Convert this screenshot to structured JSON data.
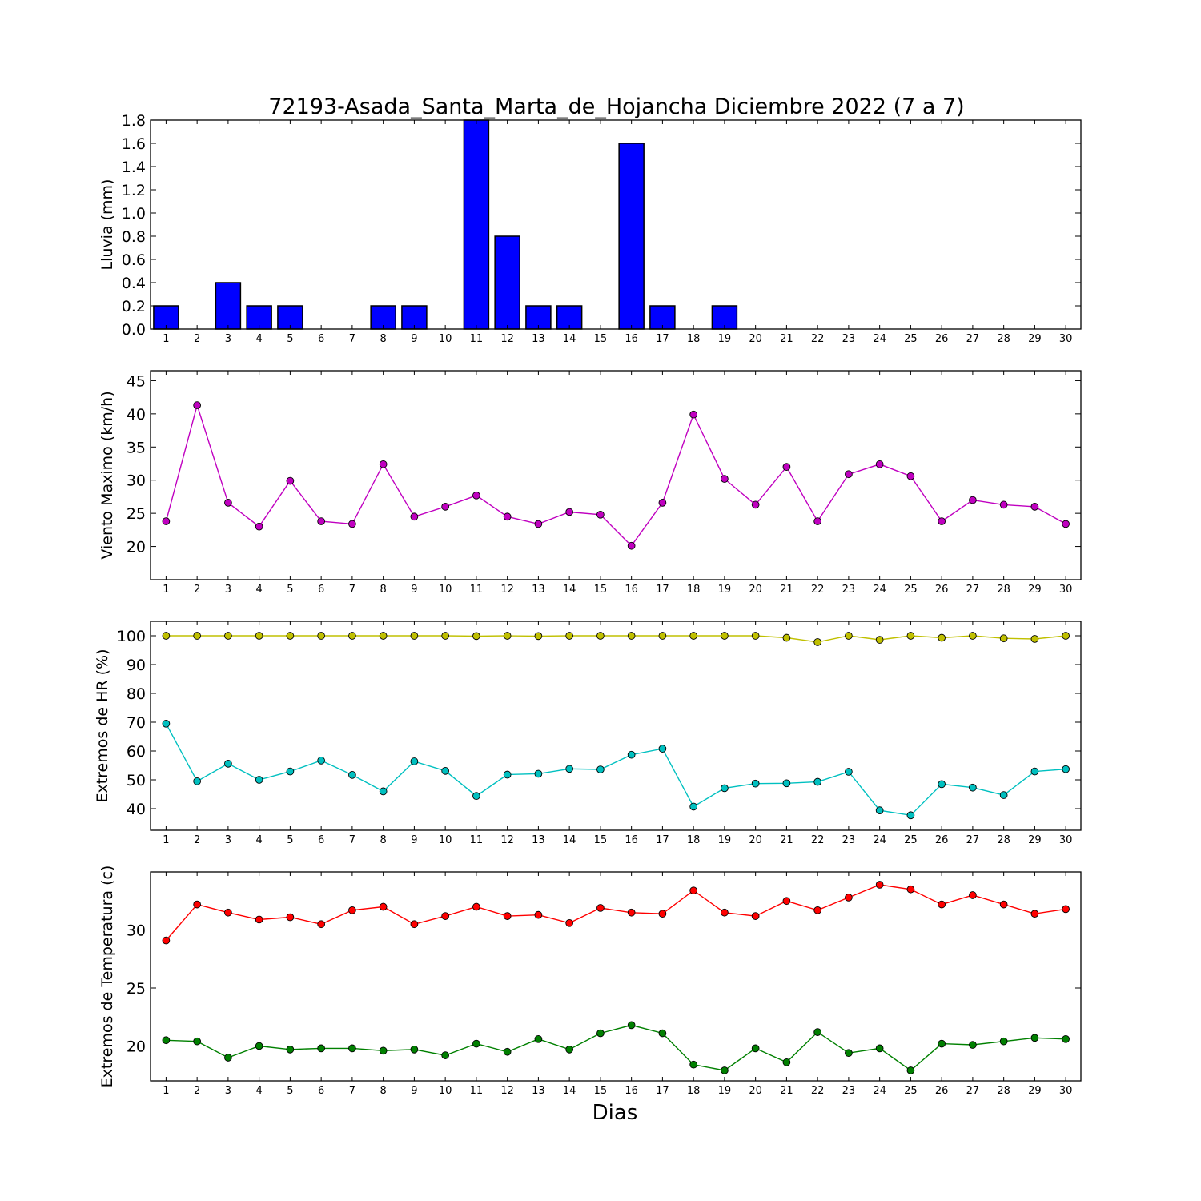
{
  "figure": {
    "title": "72193-Asada_Santa_Marta_de_Hojancha Diciembre 2022  (7 a 7)",
    "xlabel": "Dias"
  },
  "chart_data": [
    {
      "type": "bar",
      "ylabel": "Lluvia (mm)",
      "categories": [
        "1",
        "2",
        "3",
        "4",
        "5",
        "6",
        "7",
        "8",
        "9",
        "10",
        "11",
        "12",
        "13",
        "14",
        "15",
        "16",
        "17",
        "18",
        "19",
        "20",
        "21",
        "22",
        "23",
        "24",
        "25",
        "26",
        "27",
        "28",
        "29",
        "30"
      ],
      "values": [
        0.2,
        0,
        0.4,
        0.2,
        0.2,
        0,
        0,
        0.2,
        0.2,
        0,
        1.8,
        0.8,
        0.2,
        0.2,
        0,
        1.6,
        0.2,
        0,
        0.2,
        0,
        0,
        0,
        0,
        0,
        0,
        0,
        0,
        0,
        0,
        0
      ],
      "ylim": [
        0,
        1.8
      ],
      "yticks": [
        "0.0",
        "0.2",
        "0.4",
        "0.6",
        "0.8",
        "1.0",
        "1.2",
        "1.4",
        "1.6",
        "1.8"
      ],
      "color": "#0000ff"
    },
    {
      "type": "line",
      "ylabel": "Viento Maximo (km/h)",
      "x": [
        1,
        2,
        3,
        4,
        5,
        6,
        7,
        8,
        9,
        10,
        11,
        12,
        13,
        14,
        15,
        16,
        17,
        18,
        19,
        20,
        21,
        22,
        23,
        24,
        25,
        26,
        27,
        28,
        29,
        30
      ],
      "series": [
        {
          "values": [
            23.8,
            41.3,
            26.6,
            23.0,
            29.9,
            23.8,
            23.4,
            32.4,
            24.5,
            26.0,
            27.7,
            24.5,
            23.4,
            25.2,
            24.8,
            20.1,
            26.6,
            39.9,
            30.2,
            26.3,
            32.0,
            23.8,
            30.9,
            32.4,
            30.6,
            23.8,
            27.0,
            26.3,
            26.0,
            23.4
          ],
          "color": "#c000c0"
        }
      ],
      "ylim": [
        15,
        46.5
      ],
      "yticks": [
        "20",
        "25",
        "30",
        "35",
        "40",
        "45"
      ]
    },
    {
      "type": "line",
      "ylabel": "Extremos de HR (%)",
      "x": [
        1,
        2,
        3,
        4,
        5,
        6,
        7,
        8,
        9,
        10,
        11,
        12,
        13,
        14,
        15,
        16,
        17,
        18,
        19,
        20,
        21,
        22,
        23,
        24,
        25,
        26,
        27,
        28,
        29,
        30
      ],
      "series": [
        {
          "values": [
            100,
            100,
            100,
            100,
            100,
            100,
            100,
            100,
            100,
            100,
            99.9,
            100,
            99.9,
            100,
            100,
            100,
            100,
            100,
            100,
            100,
            99.3,
            97.8,
            100,
            98.6,
            100,
            99.3,
            100,
            99.1,
            98.9,
            100
          ],
          "color": "#c0c000"
        },
        {
          "values": [
            69.5,
            49.5,
            55.6,
            50.0,
            52.9,
            56.7,
            51.7,
            46.0,
            56.4,
            53.1,
            44.4,
            51.8,
            52.1,
            53.8,
            53.6,
            58.7,
            60.8,
            40.7,
            47.1,
            48.7,
            48.8,
            49.3,
            52.8,
            39.4,
            37.7,
            48.5,
            47.3,
            44.7,
            52.9,
            53.7
          ],
          "color": "#00c0c0"
        }
      ],
      "ylim": [
        32.5,
        105
      ],
      "yticks": [
        "40",
        "50",
        "60",
        "70",
        "80",
        "90",
        "100"
      ]
    },
    {
      "type": "line",
      "ylabel": "Extremos de Temperatura (c)",
      "x": [
        1,
        2,
        3,
        4,
        5,
        6,
        7,
        8,
        9,
        10,
        11,
        12,
        13,
        14,
        15,
        16,
        17,
        18,
        19,
        20,
        21,
        22,
        23,
        24,
        25,
        26,
        27,
        28,
        29,
        30
      ],
      "series": [
        {
          "values": [
            29.1,
            32.2,
            31.5,
            30.9,
            31.1,
            30.5,
            31.7,
            32.0,
            30.5,
            31.2,
            32.0,
            31.2,
            31.3,
            30.6,
            31.9,
            31.5,
            31.4,
            33.4,
            31.5,
            31.2,
            32.5,
            31.7,
            32.8,
            33.9,
            33.5,
            32.2,
            33.0,
            32.2,
            31.4,
            31.8
          ],
          "color": "#ff0000"
        },
        {
          "values": [
            20.5,
            20.4,
            19.0,
            20.0,
            19.7,
            19.8,
            19.8,
            19.6,
            19.7,
            19.2,
            20.2,
            19.5,
            20.6,
            19.7,
            21.1,
            21.8,
            21.1,
            18.4,
            17.9,
            19.8,
            18.6,
            21.2,
            19.4,
            19.8,
            17.9,
            20.2,
            20.1,
            20.4,
            20.7,
            20.6
          ],
          "color": "#008000"
        }
      ],
      "ylim": [
        17,
        35
      ],
      "yticks": [
        "20",
        "25",
        "30"
      ]
    }
  ]
}
